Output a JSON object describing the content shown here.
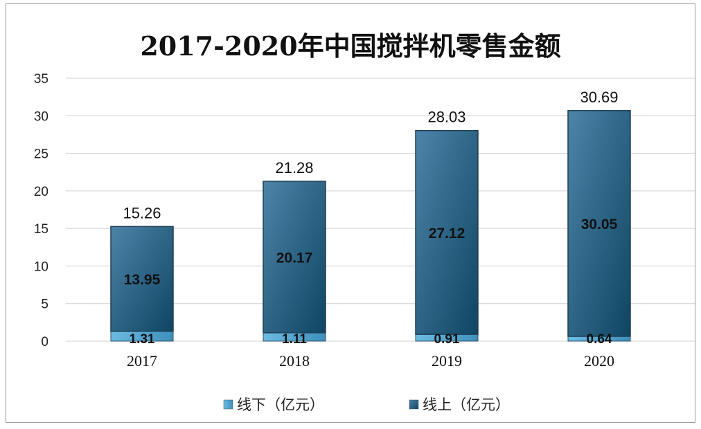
{
  "chart_data": {
    "type": "bar",
    "stacked": true,
    "title": "2017-2020年中国搅拌机零售金额",
    "categories": [
      "2017",
      "2018",
      "2019",
      "2020"
    ],
    "series": [
      {
        "name": "线下（亿元）",
        "values": [
          1.31,
          1.11,
          0.91,
          0.64
        ],
        "color": "#5aa9d6"
      },
      {
        "name": "线上（亿元）",
        "values": [
          13.95,
          20.17,
          27.12,
          30.05
        ],
        "color": "#2f6688"
      }
    ],
    "totals": [
      "15.26",
      "21.28",
      "28.03",
      "30.69"
    ],
    "labels": {
      "offline": [
        "1.31",
        "1.11",
        "0.91",
        "0.64"
      ],
      "online": [
        "13.95",
        "20.17",
        "27.12",
        "30.05"
      ]
    },
    "yticks": [
      "0",
      "5",
      "10",
      "15",
      "20",
      "25",
      "30",
      "35"
    ],
    "ylim": [
      0,
      35
    ],
    "grid": true,
    "legend_position": "bottom"
  }
}
